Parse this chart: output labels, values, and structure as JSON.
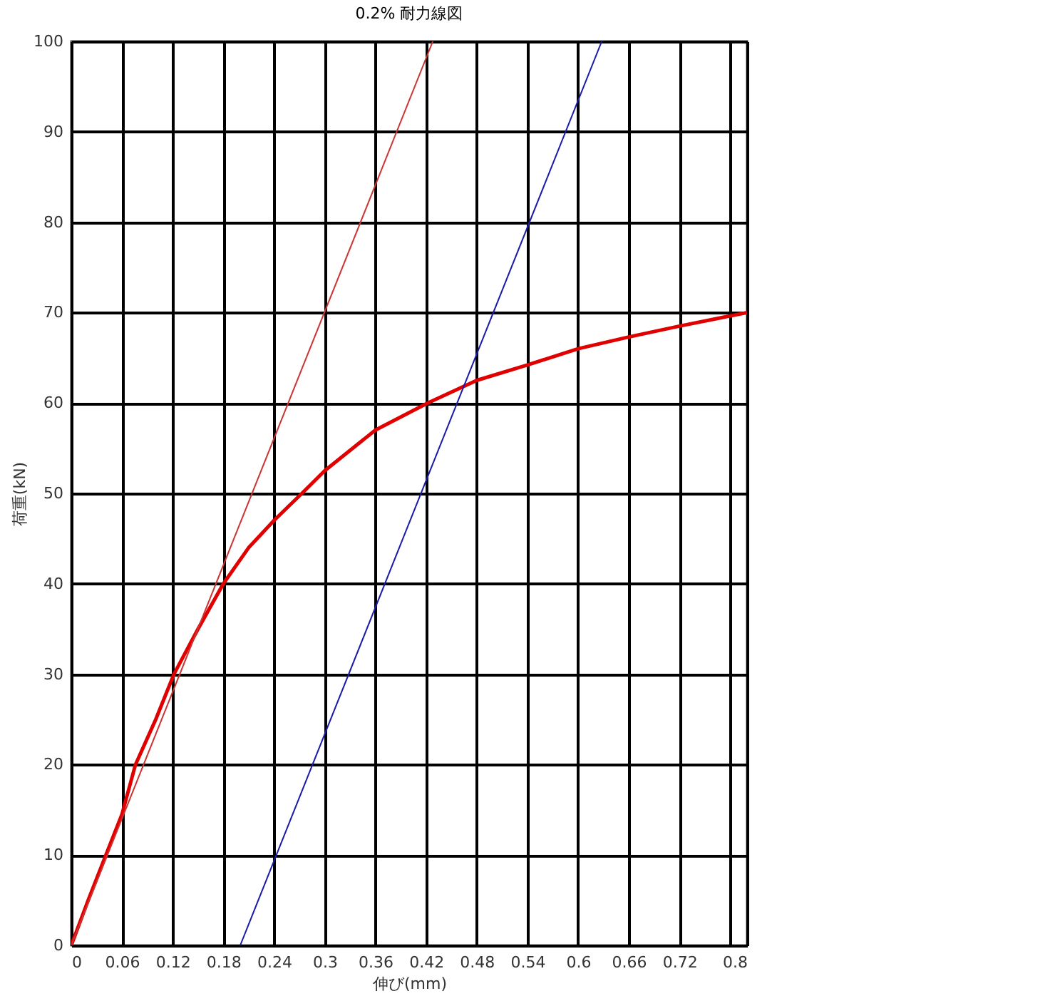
{
  "chart_data": {
    "type": "line",
    "title": "0.2% 耐力線図",
    "xlabel": "伸び(mm)",
    "ylabel": "荷重(kN)",
    "xlim": [
      0,
      0.8
    ],
    "ylim": [
      0,
      100
    ],
    "xticks": [
      0,
      0.06,
      0.12,
      0.18,
      0.24,
      0.3,
      0.36,
      0.42,
      0.48,
      0.54,
      0.6,
      0.66,
      0.72,
      {
        "value": 0.78,
        "label": null
      },
      0.8
    ],
    "yticks": [
      0,
      10,
      20,
      30,
      40,
      50,
      60,
      70,
      80,
      90,
      100
    ],
    "grid": true,
    "legend": false,
    "marker": "none",
    "line_style": "solid",
    "series": [
      {
        "color": "#e00000",
        "x": [
          0,
          0.02,
          0.041,
          0.06,
          0.076,
          0.1,
          0.1215,
          0.15,
          0.18,
          0.21,
          0.24,
          0.273,
          0.3,
          0.36,
          0.422,
          0.48,
          0.54,
          0.6,
          0.66,
          0.72,
          0.8
        ],
        "values": [
          0,
          5,
          10,
          14.5,
          20,
          25,
          30,
          35,
          40,
          44,
          47,
          50,
          52.5,
          57,
          60,
          62.5,
          64.2,
          66,
          67.3,
          68.5,
          70
        ]
      },
      {
        "color": "#cc3333",
        "x": [
          0,
          0.428
        ],
        "values": [
          0,
          100
        ]
      },
      {
        "color": "#1a1aaa",
        "x": [
          0.2,
          0.628
        ],
        "values": [
          0,
          100
        ]
      }
    ]
  }
}
